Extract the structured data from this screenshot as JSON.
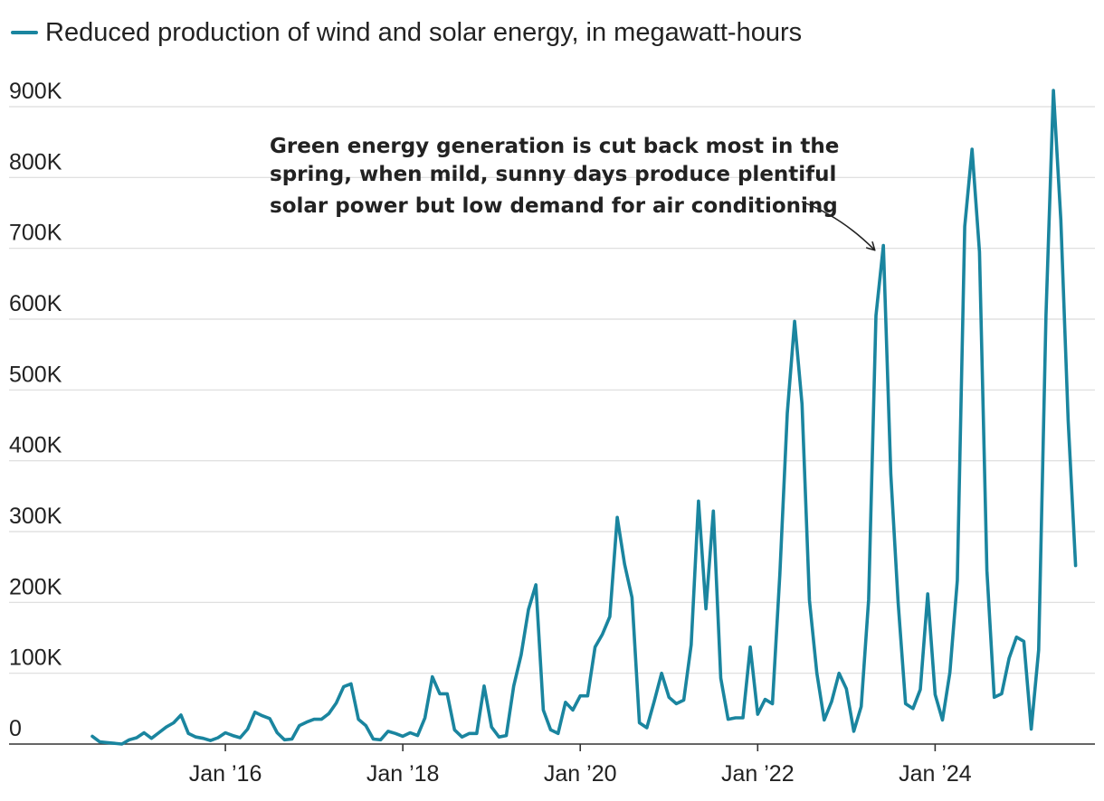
{
  "chart_data": {
    "type": "line",
    "x_start": "2014-07",
    "x_step": "month",
    "legend": {
      "placement": "top-left",
      "label": "Reduced production of wind and solar energy, in megawatt-hours"
    },
    "series": [
      {
        "name": "Reduced production of wind and solar energy, in megawatt-hours",
        "color": "#1a859f",
        "values": [
          11000,
          3000,
          2000,
          1000,
          0,
          6000,
          9000,
          16000,
          8000,
          16000,
          24000,
          30000,
          41000,
          15000,
          10000,
          8000,
          5000,
          9000,
          16000,
          12000,
          9000,
          21000,
          45000,
          40000,
          36000,
          16000,
          6000,
          7000,
          26000,
          31000,
          35000,
          35000,
          43000,
          58000,
          81000,
          85000,
          35000,
          26000,
          7000,
          6000,
          18000,
          15000,
          11000,
          16000,
          12000,
          37000,
          95000,
          71000,
          71000,
          20000,
          10000,
          15000,
          15000,
          82000,
          24000,
          10000,
          12000,
          82000,
          126000,
          190000,
          225000,
          48000,
          20000,
          15000,
          59000,
          48000,
          68000,
          68000,
          137000,
          155000,
          180000,
          320000,
          254000,
          207000,
          30000,
          23000,
          60000,
          100000,
          66000,
          57000,
          62000,
          140000,
          343000,
          191000,
          329000,
          93000,
          35000,
          37000,
          37000,
          137000,
          42000,
          63000,
          57000,
          240000,
          467000,
          597000,
          480000,
          203000,
          100000,
          34000,
          60000,
          100000,
          78000,
          18000,
          53000,
          204000,
          605000,
          704000,
          381000,
          200000,
          57000,
          50000,
          77000,
          212000,
          70000,
          34000,
          101000,
          231000,
          731000,
          840000,
          695000,
          245000,
          66000,
          71000,
          121000,
          151000,
          145000,
          21000,
          133000,
          606000,
          923000,
          740000,
          457000,
          252000
        ]
      }
    ],
    "ylim": [
      0,
      900000
    ],
    "yticks": [
      0,
      100000,
      200000,
      300000,
      400000,
      500000,
      600000,
      700000,
      800000,
      900000
    ],
    "ytick_labels": [
      "0",
      "100K",
      "200K",
      "300K",
      "400K",
      "500K",
      "600K",
      "700K",
      "800K",
      "900K"
    ],
    "xticks": [
      "2016-01",
      "2018-01",
      "2020-01",
      "2022-01",
      "2024-01"
    ],
    "xtick_labels": [
      "Jan ’16",
      "Jan ’18",
      "Jan ’20",
      "Jan ’22",
      "Jan ’24"
    ],
    "grid": {
      "horizontal": true,
      "vertical": false
    },
    "annotation": {
      "lines": [
        "Green energy generation is cut back most in the",
        "spring, when mild, sunny days produce plentiful",
        "solar power but low demand for air conditioning"
      ],
      "points_to": {
        "x": "2023-04",
        "y": 700000
      }
    }
  }
}
